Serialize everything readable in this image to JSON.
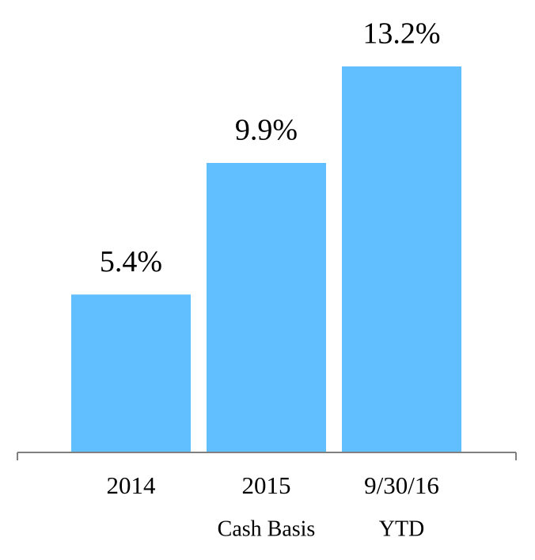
{
  "chart_data": {
    "type": "bar",
    "categories": [
      "2014",
      "2015",
      "9/30/16"
    ],
    "category_sublabels": [
      null,
      "Cash Basis",
      "YTD"
    ],
    "values": [
      5.4,
      9.9,
      13.2
    ],
    "value_labels": [
      "5.4%",
      "9.9%",
      "13.2%"
    ],
    "color": "#62bfff"
  }
}
